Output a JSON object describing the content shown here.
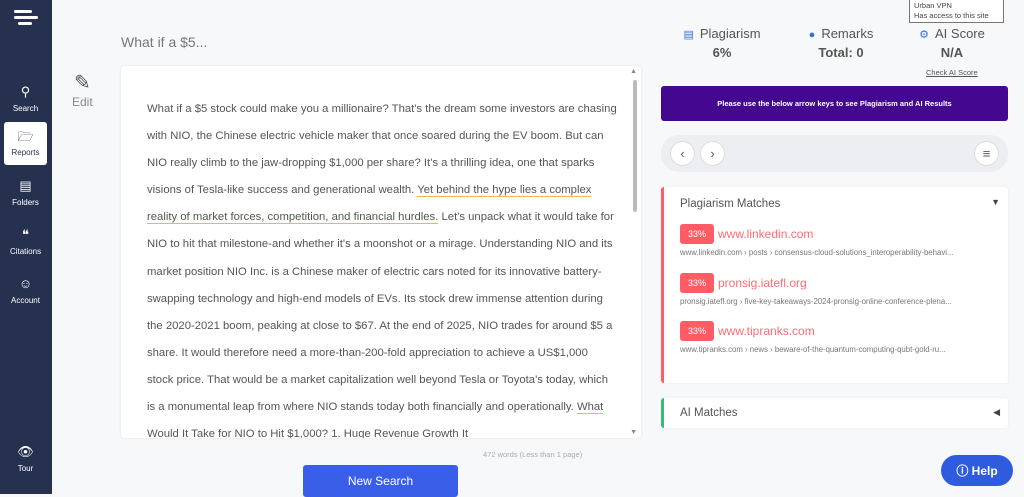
{
  "sidebar": {
    "items": [
      {
        "label": "Search",
        "icon": "search-icon"
      },
      {
        "label": "Reports",
        "icon": "folder-icon"
      },
      {
        "label": "Folders",
        "icon": "list-icon"
      },
      {
        "label": "Citations",
        "icon": "quote-icon"
      },
      {
        "label": "Account",
        "icon": "user-icon"
      }
    ],
    "tour": "Tour"
  },
  "editor": {
    "title": "What if a $5...",
    "edit_label": "Edit",
    "segments": [
      "What if a $5 stock could make you a millionaire? That's the dream some investors are chasing with NIO, the Chinese electric vehicle maker that once soared during the EV boom. But can NIO really climb to the jaw-dropping $1,000 per share? It's a thrilling idea, one that sparks visions of Tesla-like success and generational wealth. ",
      "Yet behind the hype lies a complex reality of market forces, competition, and financial hurdles.",
      " Let's unpack what it would take for NIO to hit that milestone-and whether it's a moonshot or a mirage. Understanding NIO and its market position NIO Inc. is a Chinese maker of electric cars noted for its innovative battery-swapping technology and high-end models of EVs. Its stock drew immense attention during the 2020-2021 boom, peaking at close to $67. At the end of 2025, NIO trades for around $5 a share. It would therefore need a more-than-200-fold appreciation to achieve a US$1,000 stock price. That would be a market capitalization well beyond Tesla or Toyota's today, which is a monumental leap from where NIO stands today both financially and operationally. ",
      "What Would It Take for NIO to Hit $1,000?",
      " 1. Huge Revenue Growth It"
    ],
    "word_count": "472 words (Less than 1 page)",
    "new_search": "New Search"
  },
  "stats": {
    "plagiarism": {
      "label": "Plagiarism",
      "value": "6%"
    },
    "remarks": {
      "label": "Remarks",
      "value": "Total: 0"
    },
    "ai": {
      "label": "AI Score",
      "value": "N/A",
      "link": "Check AI Score"
    }
  },
  "tooltip": {
    "line1": "Urban VPN",
    "line2": "Has access to this site"
  },
  "banner": "Please use the below arrow keys to see Plagiarism and AI Results",
  "plagiarism_matches": {
    "title": "Plagiarism Matches",
    "items": [
      {
        "percent": "33%",
        "site": "www.linkedin.com",
        "path": "www.linkedin.com › posts › consensus-cloud-solutions_interoperability-behavi..."
      },
      {
        "percent": "33%",
        "site": "pronsig.iatefl.org",
        "path": "pronsig.iatefl.org › five-key-takeaways-2024-pronsig-online-conference-plena..."
      },
      {
        "percent": "33%",
        "site": "www.tipranks.com",
        "path": "www.tipranks.com › news › beware-of-the-quantum-computing-qubt-gold-ru..."
      }
    ]
  },
  "ai_matches": {
    "title": "AI Matches"
  },
  "help": "Help",
  "colors": {
    "sidebar": "#263150",
    "banner": "#43088f",
    "accent": "#3a5ee8",
    "match": "#ff5c66"
  }
}
